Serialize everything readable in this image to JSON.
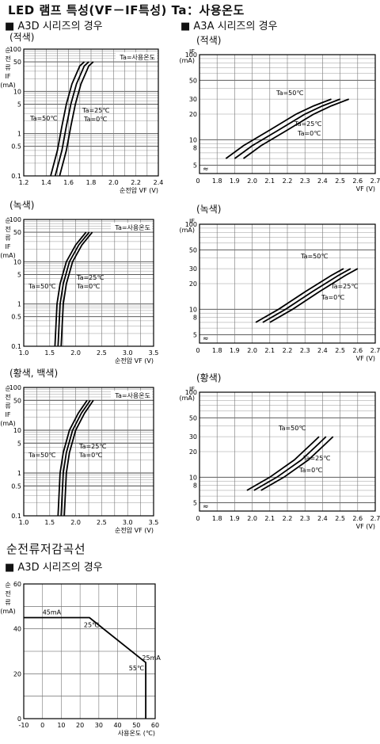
{
  "header": {
    "title": "LED 램프 특성(VF－IF특성) Ta：사용온도",
    "left_section": "■ A3D 시리즈의 경우",
    "right_section": "■ A3A 시리즈의 경우",
    "derating_title": "순전류저감곡선",
    "derating_section": "■ A3D 시리즈의 경우"
  },
  "subtitles": {
    "red_left": "(적색)",
    "red_right": "(적색)",
    "green_left": "(녹색)",
    "green_right": "(녹색)",
    "yellow_left": "(황색, 백색)",
    "yellow_right": "(황색)"
  },
  "chart_data": [
    {
      "id": "a3d-red",
      "type": "line",
      "scale": "log-y",
      "ylabel": "순전류 IF (mA)",
      "xlabel": "순전압 VF (V)",
      "xlim": [
        1.2,
        2.4
      ],
      "ylim": [
        0.1,
        100
      ],
      "xticks": [
        "1.2",
        "1.4",
        "1.6",
        "1.8",
        "2.0",
        "2.2",
        "2.4"
      ],
      "yticks": [
        "0.1",
        "0.5",
        "1",
        "5",
        "10",
        "50",
        "100"
      ],
      "legend": "Ta=사용온도",
      "series": [
        {
          "name": "Ta=50℃",
          "points": [
            [
              1.44,
              0.1
            ],
            [
              1.5,
              0.4
            ],
            [
              1.54,
              1.5
            ],
            [
              1.58,
              5
            ],
            [
              1.63,
              15
            ],
            [
              1.7,
              40
            ],
            [
              1.74,
              50
            ]
          ]
        },
        {
          "name": "Ta=25℃",
          "points": [
            [
              1.48,
              0.1
            ],
            [
              1.54,
              0.4
            ],
            [
              1.58,
              1.5
            ],
            [
              1.62,
              5
            ],
            [
              1.67,
              15
            ],
            [
              1.74,
              40
            ],
            [
              1.78,
              50
            ]
          ]
        },
        {
          "name": "Ta=0℃",
          "points": [
            [
              1.52,
              0.1
            ],
            [
              1.58,
              0.4
            ],
            [
              1.62,
              1.5
            ],
            [
              1.66,
              5
            ],
            [
              1.71,
              15
            ],
            [
              1.78,
              40
            ],
            [
              1.82,
              50
            ]
          ]
        }
      ]
    },
    {
      "id": "a3a-red",
      "type": "line",
      "scale": "log-y",
      "ylabel": "IF (mA)",
      "xlabel": "VF (V)",
      "xlim": [
        1.7,
        2.7
      ],
      "ylim": [
        4,
        100
      ],
      "xticks": [
        "0",
        "1.8",
        "1.9",
        "2.0",
        "2.1",
        "2.2",
        "2.3",
        "2.4",
        "2.5",
        "2.6",
        "2.7"
      ],
      "yticks": [
        "5",
        "8",
        "10",
        "20",
        "30",
        "50",
        "100"
      ],
      "series": [
        {
          "name": "Ta=50℃",
          "points": [
            [
              1.85,
              6
            ],
            [
              1.95,
              8.5
            ],
            [
              2.1,
              13
            ],
            [
              2.25,
              20
            ],
            [
              2.35,
              25
            ],
            [
              2.45,
              30
            ]
          ]
        },
        {
          "name": "Ta=25℃",
          "points": [
            [
              1.9,
              6
            ],
            [
              2.0,
              8.5
            ],
            [
              2.15,
              13
            ],
            [
              2.3,
              20
            ],
            [
              2.4,
              25
            ],
            [
              2.5,
              30
            ]
          ]
        },
        {
          "name": "Ta=0℃",
          "points": [
            [
              1.95,
              6
            ],
            [
              2.05,
              8.5
            ],
            [
              2.2,
              13
            ],
            [
              2.35,
              20
            ],
            [
              2.45,
              25
            ],
            [
              2.55,
              30
            ]
          ]
        }
      ]
    },
    {
      "id": "a3d-green",
      "type": "line",
      "scale": "log-y",
      "ylabel": "순전류 IF (mA)",
      "xlabel": "순전압 VF (V)",
      "xlim": [
        1.0,
        3.5
      ],
      "ylim": [
        0.1,
        100
      ],
      "xticks": [
        "1.0",
        "1.5",
        "2.0",
        "2.5",
        "3.0",
        "3.5"
      ],
      "yticks": [
        "0.1",
        "0.5",
        "1",
        "5",
        "10",
        "50",
        "100"
      ],
      "legend": "Ta=사용온도",
      "series": [
        {
          "name": "Ta=50℃",
          "points": [
            [
              1.6,
              0.1
            ],
            [
              1.64,
              1
            ],
            [
              1.7,
              3
            ],
            [
              1.82,
              10
            ],
            [
              2.0,
              25
            ],
            [
              2.2,
              50
            ]
          ]
        },
        {
          "name": "Ta=25℃",
          "points": [
            [
              1.66,
              0.1
            ],
            [
              1.7,
              1
            ],
            [
              1.76,
              3
            ],
            [
              1.88,
              10
            ],
            [
              2.06,
              25
            ],
            [
              2.26,
              50
            ]
          ]
        },
        {
          "name": "Ta=0℃",
          "points": [
            [
              1.72,
              0.1
            ],
            [
              1.76,
              1
            ],
            [
              1.82,
              3
            ],
            [
              1.94,
              10
            ],
            [
              2.12,
              25
            ],
            [
              2.32,
              50
            ]
          ]
        }
      ]
    },
    {
      "id": "a3a-green",
      "type": "line",
      "scale": "log-y",
      "ylabel": "IF (mA)",
      "xlabel": "VF (V)",
      "xlim": [
        1.7,
        2.7
      ],
      "ylim": [
        4,
        100
      ],
      "xticks": [
        "0",
        "1.8",
        "1.9",
        "2.0",
        "2.1",
        "2.2",
        "2.3",
        "2.4",
        "2.5",
        "2.6",
        "2.7"
      ],
      "yticks": [
        "5",
        "8",
        "10",
        "20",
        "30",
        "50",
        "100"
      ],
      "series": [
        {
          "name": "Ta=50℃",
          "points": [
            [
              2.02,
              7
            ],
            [
              2.15,
              10
            ],
            [
              2.3,
              16
            ],
            [
              2.45,
              25
            ],
            [
              2.52,
              30
            ]
          ]
        },
        {
          "name": "Ta=25℃",
          "points": [
            [
              2.06,
              7
            ],
            [
              2.19,
              10
            ],
            [
              2.34,
              16
            ],
            [
              2.49,
              25
            ],
            [
              2.56,
              30
            ]
          ]
        },
        {
          "name": "Ta=0℃",
          "points": [
            [
              2.1,
              7
            ],
            [
              2.23,
              10
            ],
            [
              2.38,
              16
            ],
            [
              2.53,
              25
            ],
            [
              2.6,
              30
            ]
          ]
        }
      ]
    },
    {
      "id": "a3d-yellow",
      "type": "line",
      "scale": "log-y",
      "ylabel": "순전류 IF (mA)",
      "xlabel": "순전압 VF (V)",
      "xlim": [
        1.0,
        3.5
      ],
      "ylim": [
        0.1,
        100
      ],
      "xticks": [
        "1.0",
        "1.5",
        "2.0",
        "2.5",
        "3.0",
        "3.5"
      ],
      "yticks": [
        "0.1",
        "0.5",
        "1",
        "5",
        "10",
        "50",
        "100"
      ],
      "legend": "Ta=사용온도",
      "series": [
        {
          "name": "Ta=50℃",
          "points": [
            [
              1.66,
              0.1
            ],
            [
              1.7,
              1
            ],
            [
              1.76,
              3
            ],
            [
              1.88,
              10
            ],
            [
              2.05,
              25
            ],
            [
              2.22,
              50
            ]
          ]
        },
        {
          "name": "Ta=25℃",
          "points": [
            [
              1.72,
              0.1
            ],
            [
              1.76,
              1
            ],
            [
              1.82,
              3
            ],
            [
              1.94,
              10
            ],
            [
              2.11,
              25
            ],
            [
              2.28,
              50
            ]
          ]
        },
        {
          "name": "Ta=0℃",
          "points": [
            [
              1.78,
              0.1
            ],
            [
              1.82,
              1
            ],
            [
              1.88,
              3
            ],
            [
              2.0,
              10
            ],
            [
              2.17,
              25
            ],
            [
              2.34,
              50
            ]
          ]
        }
      ]
    },
    {
      "id": "a3a-yellow",
      "type": "line",
      "scale": "log-y",
      "ylabel": "IF (mA)",
      "xlabel": "VF (V)",
      "xlim": [
        1.7,
        2.7
      ],
      "ylim": [
        4,
        100
      ],
      "xticks": [
        "0",
        "1.8",
        "1.9",
        "2.0",
        "2.1",
        "2.2",
        "2.3",
        "2.4",
        "2.5",
        "2.6",
        "2.7"
      ],
      "yticks": [
        "5",
        "8",
        "10",
        "20",
        "30",
        "50",
        "100"
      ],
      "series": [
        {
          "name": "Ta=50℃",
          "points": [
            [
              1.97,
              7
            ],
            [
              2.1,
              10
            ],
            [
              2.24,
              16
            ],
            [
              2.34,
              25
            ],
            [
              2.38,
              30
            ]
          ]
        },
        {
          "name": "Ta=25℃",
          "points": [
            [
              2.01,
              7
            ],
            [
              2.14,
              10
            ],
            [
              2.28,
              16
            ],
            [
              2.38,
              25
            ],
            [
              2.42,
              30
            ]
          ]
        },
        {
          "name": "Ta=0℃",
          "points": [
            [
              2.05,
              7
            ],
            [
              2.18,
              10
            ],
            [
              2.32,
              16
            ],
            [
              2.42,
              25
            ],
            [
              2.46,
              30
            ]
          ]
        }
      ]
    },
    {
      "id": "a3d-derating",
      "type": "line",
      "scale": "linear",
      "ylabel": "순전류 (mA)",
      "xlabel": "사용온도 (℃)",
      "xlim": [
        -10,
        60
      ],
      "ylim": [
        0,
        60
      ],
      "xticks": [
        "-10",
        "0",
        "10",
        "20",
        "30",
        "40",
        "50",
        "60"
      ],
      "yticks": [
        "0",
        "20",
        "40",
        "60"
      ],
      "series": [
        {
          "name": "",
          "points": [
            [
              -10,
              45
            ],
            [
              25,
              45
            ],
            [
              55,
              25
            ],
            [
              55,
              0
            ]
          ]
        }
      ],
      "annotations": [
        "45mA",
        "25℃",
        "25mA",
        "55℃"
      ]
    }
  ]
}
